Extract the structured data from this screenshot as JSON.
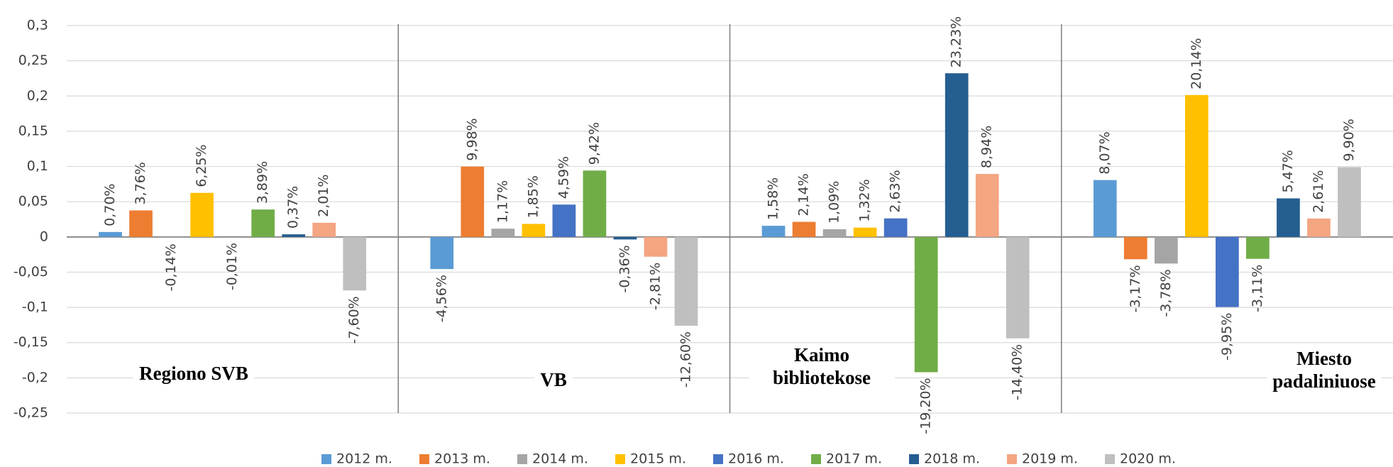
{
  "chart_data": {
    "type": "bar",
    "categories": [
      "Regiono SVB",
      "VB",
      "Kaimo bibliotekose",
      "Miesto padaliniuose"
    ],
    "series": [
      {
        "name": "2012 m.",
        "color": "#5b9bd5",
        "values": [
          0.007,
          -0.0456,
          0.0158,
          0.0807
        ],
        "value_labels": [
          "0,70%",
          "-4,56%",
          "1,58%",
          "8,07%"
        ]
      },
      {
        "name": "2013 m.",
        "color": "#ed7d31",
        "values": [
          0.0376,
          0.0998,
          0.0214,
          -0.0317
        ],
        "value_labels": [
          "3,76%",
          "9,98%",
          "2,14%",
          "-3,17%"
        ]
      },
      {
        "name": "2014 m.",
        "color": "#a5a5a5",
        "values": [
          -0.0014,
          0.0117,
          0.0109,
          -0.0378
        ],
        "value_labels": [
          "-0,14%",
          "1,17%",
          "1,09%",
          "-3,78%"
        ]
      },
      {
        "name": "2015 m.",
        "color": "#ffc000",
        "values": [
          0.0625,
          0.0185,
          0.0132,
          0.2014
        ],
        "value_labels": [
          "6,25%",
          "1,85%",
          "1,32%",
          "20,14%"
        ]
      },
      {
        "name": "2016 m.",
        "color": "#4472c4",
        "values": [
          -0.0001,
          0.0459,
          0.0263,
          -0.0995
        ],
        "value_labels": [
          "-0,01%",
          "4,59%",
          "2,63%",
          "-9,95%"
        ]
      },
      {
        "name": "2017 m.",
        "color": "#70ad47",
        "values": [
          0.0389,
          0.0942,
          -0.192,
          -0.0311
        ],
        "value_labels": [
          "3,89%",
          "9,42%",
          "-19,20%",
          "-3,11%"
        ]
      },
      {
        "name": "2018 m.",
        "color": "#255e91",
        "values": [
          0.0037,
          -0.0036,
          0.2323,
          0.0547
        ],
        "value_labels": [
          "0,37%",
          "-0,36%",
          "23,23%",
          "5,47%"
        ]
      },
      {
        "name": "2019 m.",
        "color": "#f4a582",
        "values": [
          0.0201,
          -0.0281,
          0.0894,
          0.0261
        ],
        "value_labels": [
          "2,01%",
          "-2,81%",
          "8,94%",
          "2,61%"
        ]
      },
      {
        "name": "2020 m.",
        "color": "#bfbfbf",
        "values": [
          -0.076,
          -0.126,
          -0.144,
          0.099
        ],
        "value_labels": [
          "-7,60%",
          "-12,60%",
          "-14,40%",
          "9,90%"
        ]
      }
    ],
    "ylim": [
      -0.25,
      0.3
    ],
    "yticks": [
      {
        "value": 0.3,
        "label": "0,3"
      },
      {
        "value": 0.25,
        "label": "0,25"
      },
      {
        "value": 0.2,
        "label": "0,2"
      },
      {
        "value": 0.15,
        "label": "0,15"
      },
      {
        "value": 0.1,
        "label": "0,1"
      },
      {
        "value": 0.05,
        "label": "0,05"
      },
      0,
      {
        "value": -0.05,
        "label": "-0,05"
      },
      {
        "value": -0.1,
        "label": "-0,1"
      },
      {
        "value": -0.15,
        "label": "-0,15"
      },
      {
        "value": -0.2,
        "label": "-0,2"
      },
      {
        "value": -0.25,
        "label": "-0,25"
      }
    ],
    "grid": true,
    "legend": "bottom"
  }
}
